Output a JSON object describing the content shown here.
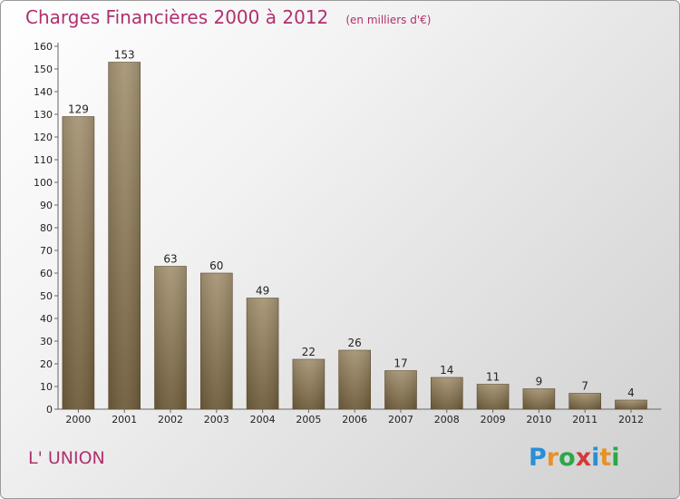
{
  "header": {
    "title": "Charges Financières 2000 à 2012",
    "subtitle": "(en milliers d'€)"
  },
  "footer": {
    "commune": "L' UNION",
    "logo_text": "Proxiti",
    "logo_colors": [
      "#2a8fd4",
      "#e8912a",
      "#2aa84a",
      "#d33a3a",
      "#2a8fd4",
      "#e8912a",
      "#2aa84a"
    ]
  },
  "colors": {
    "bar_top": "#a69474",
    "bar_bottom": "#6e5c3a",
    "axis": "#666666"
  },
  "chart_data": {
    "type": "bar",
    "categories": [
      "2000",
      "2001",
      "2002",
      "2003",
      "2004",
      "2005",
      "2006",
      "2007",
      "2008",
      "2009",
      "2010",
      "2011",
      "2012"
    ],
    "values": [
      129,
      153,
      63,
      60,
      49,
      22,
      26,
      17,
      14,
      11,
      9,
      7,
      4
    ],
    "ylim": [
      0,
      160
    ],
    "yticks": [
      0,
      10,
      20,
      30,
      40,
      50,
      60,
      70,
      80,
      90,
      100,
      110,
      120,
      130,
      140,
      150,
      160
    ],
    "grid": false,
    "xlabel": "",
    "ylabel": ""
  }
}
